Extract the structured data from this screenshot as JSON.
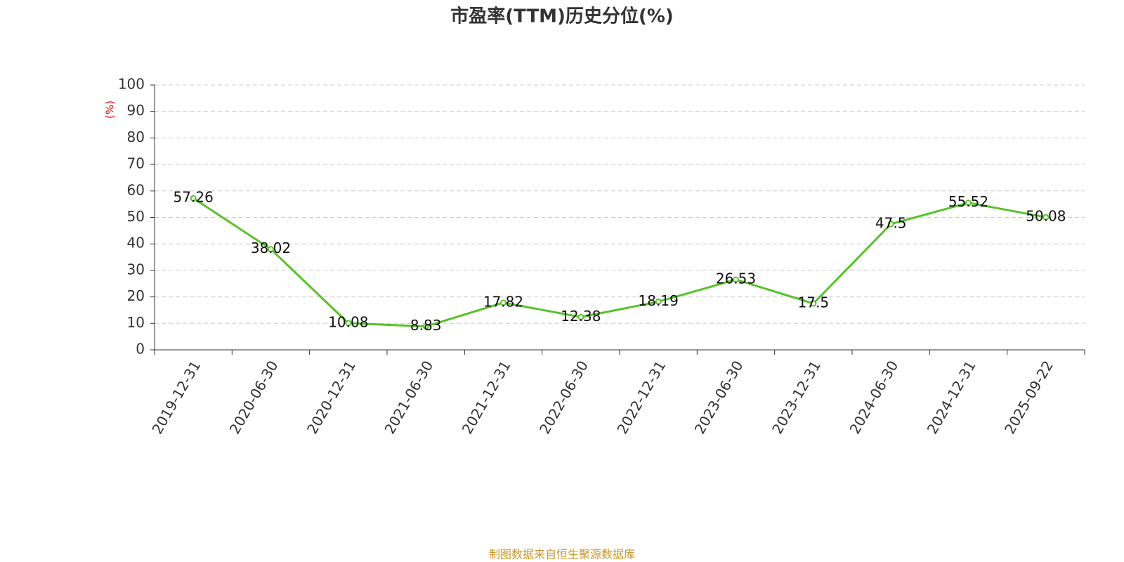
{
  "chart_data": {
    "type": "line",
    "title": "市盈率(TTM)历史分位(%)",
    "y_label": "(%)",
    "categories": [
      "2019-12-31",
      "2020-06-30",
      "2020-12-31",
      "2021-06-30",
      "2021-12-31",
      "2022-06-30",
      "2022-12-31",
      "2023-06-30",
      "2023-12-31",
      "2024-06-30",
      "2024-12-31",
      "2025-09-22"
    ],
    "series": [
      {
        "name": "市盈率(TTM)历史分位",
        "color": "#58c22b",
        "values": [
          57.26,
          38.02,
          10.08,
          8.83,
          17.82,
          12.38,
          18.19,
          26.53,
          17.5,
          47.5,
          55.52,
          50.08
        ]
      }
    ],
    "ylim": [
      0,
      100
    ],
    "yticks": [
      0,
      10,
      20,
      30,
      40,
      50,
      60,
      70,
      80,
      90,
      100
    ],
    "grid": true,
    "source": "制图数据来自恒生聚源数据库"
  }
}
